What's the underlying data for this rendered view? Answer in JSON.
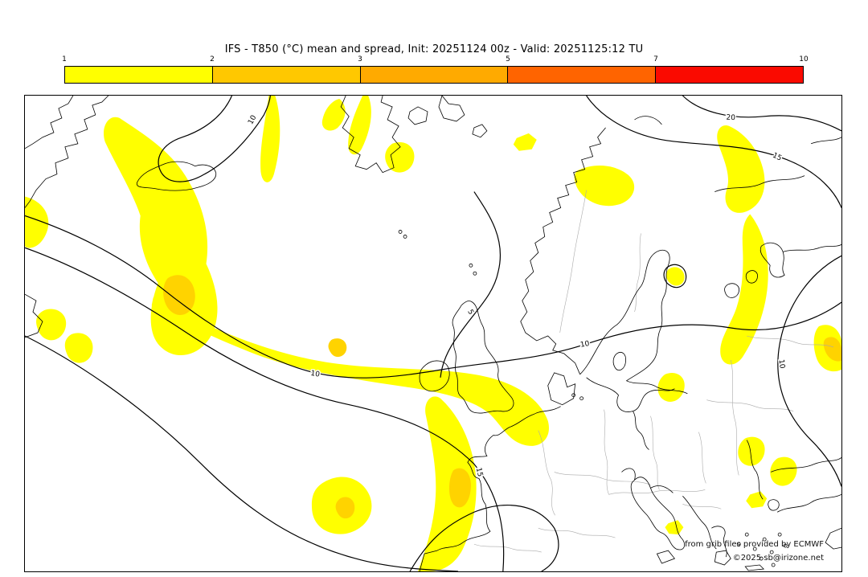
{
  "header": {
    "title": "IFS - T850 (°C) mean and spread, Init: 20251124 00z - Valid: 20251125:12 TU"
  },
  "colorbar": {
    "ticks": [
      "1",
      "2",
      "3",
      "5",
      "7",
      "10"
    ],
    "segments": [
      {
        "color": "#FFFF00"
      },
      {
        "color": "#FFC800"
      },
      {
        "color": "#FFAA00"
      },
      {
        "color": "#FF6400"
      },
      {
        "color": "#FA0A00"
      }
    ],
    "border_color": "#000000"
  },
  "map": {
    "background": "#FFFFFF",
    "border_color": "#000000",
    "coastline_color": "#000000",
    "country_border_color": "#AAAAAA",
    "contour_color": "#000000",
    "spread_fill_light": "#FFFF00",
    "spread_fill_core": "#FFD300",
    "contour_labels": [
      {
        "text": "10"
      },
      {
        "text": "10"
      },
      {
        "text": "10"
      },
      {
        "text": "15"
      },
      {
        "text": "20"
      },
      {
        "text": "15"
      },
      {
        "text": "10"
      },
      {
        "text": "5"
      }
    ]
  },
  "attribution": {
    "provider": "from grib files provided by ECMWF",
    "copyright": "©2025 sb@irizone.net"
  },
  "chart_data": {
    "type": "heatmap",
    "title": "IFS - T850 (°C) mean and spread, Init: 20251124 00z - Valid: 20251125:12 TU",
    "legend_ticks": [
      1,
      2,
      3,
      5,
      7,
      10
    ],
    "legend_colors": [
      "#FFFF00",
      "#FFC800",
      "#FFAA00",
      "#FF6400",
      "#FA0A00"
    ],
    "contour_values_shown": [
      5,
      10,
      15,
      20
    ],
    "shaded_spread_range_shown": "1-3"
  }
}
